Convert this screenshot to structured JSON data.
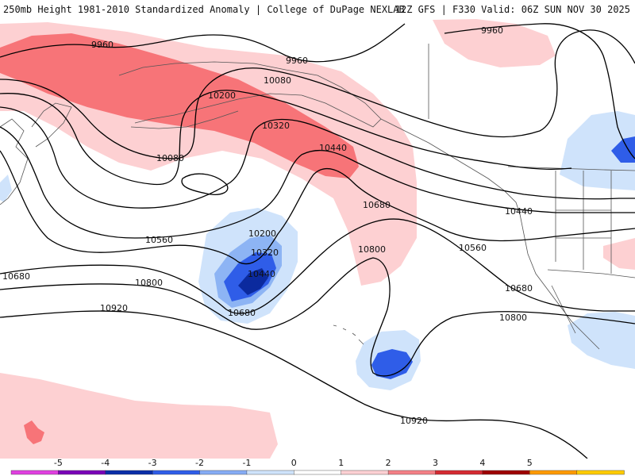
{
  "header": {
    "left": "250mb Height 1981-2010 Standardized Anomaly | College of DuPage NEXLAB",
    "right": "12Z GFS | F330 Valid: 06Z SUN NOV 30 2025"
  },
  "contour_labels": [
    "9960",
    "9960",
    "9960",
    "10080",
    "10080",
    "10200",
    "10320",
    "10440",
    "10680",
    "10440",
    "10560",
    "10200",
    "10320",
    "10440",
    "10680",
    "10560",
    "10800",
    "10800",
    "10680",
    "10920",
    "10800",
    "10920",
    "10680"
  ],
  "colorbar": {
    "ticks": [
      "-5",
      "-4",
      "-3",
      "-2",
      "-1",
      "0",
      "1",
      "2",
      "3",
      "4",
      "5"
    ],
    "colors": [
      "#e040e0",
      "#7a00b8",
      "#0a2ea8",
      "#2f5de8",
      "#86acf5",
      "#cfe3fb",
      "#ffffff",
      "#fcd0d3",
      "#f48086",
      "#d42a32",
      "#9e0000",
      "#ff9a00",
      "#ffcc00"
    ]
  },
  "colors": {
    "pos1": "#fdd0d2",
    "pos2": "#f77478",
    "neg1": "#cfe3fb",
    "neg2": "#8db4f4",
    "neg3": "#2f5de8",
    "neg4": "#0b2a9e",
    "contour": "#000000",
    "coast": "#555555"
  }
}
